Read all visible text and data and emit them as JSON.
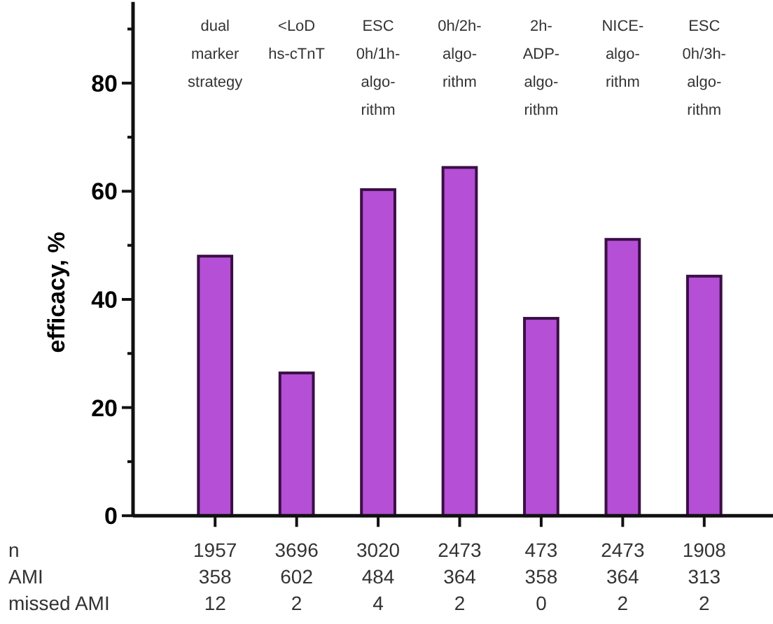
{
  "chart_data": {
    "type": "bar",
    "ylabel": "efficacy, %",
    "categories": [
      "dual\nmarker\nstrategy",
      "<LoD\nhs-cTnT",
      "ESC\n0h/1h-\nalgo-\nrithm",
      "0h/2h-\nalgo-\nrithm",
      "2h-\nADP-\nalgo-\nrithm",
      "NICE-\nalgo-\nrithm",
      "ESC\n0h/3h-\nalgo-\nrithm"
    ],
    "values": [
      48,
      26.4,
      60.3,
      64.4,
      36.5,
      51.1,
      44.3
    ],
    "color": "#b54fd6",
    "ylim": [
      0,
      95
    ],
    "yticks": [
      0,
      {
        "value": 10,
        "label": null
      },
      20,
      {
        "value": 30,
        "label": null
      },
      40,
      {
        "value": 50,
        "label": null
      },
      60,
      {
        "value": 70,
        "label": null
      },
      80,
      {
        "value": 90,
        "label": null
      }
    ],
    "annotations": [
      "n",
      "1957",
      "3696",
      "3020",
      "2473",
      "473",
      "2473",
      "1908",
      "AMI",
      "358",
      "602",
      "484",
      "364",
      "358",
      "364",
      "313",
      "missed AMI",
      "12",
      "2",
      "4",
      "2",
      "0",
      "2",
      "2"
    ]
  }
}
